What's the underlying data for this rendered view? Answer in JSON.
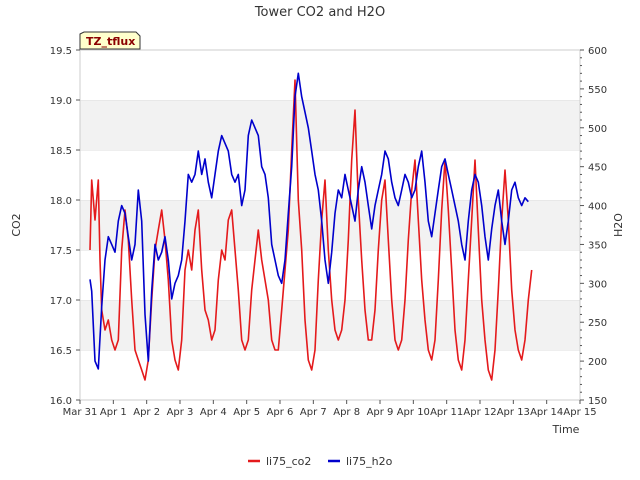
{
  "chart_data": {
    "type": "line",
    "title": "Tower CO2 and H2O",
    "site_tag": "TZ_tflux",
    "xlabel": "Time",
    "ylabel_left": "CO2",
    "ylabel_right": "H2O",
    "x_ticks": [
      "Mar 31",
      "Apr 1",
      "Apr 2",
      "Apr 3",
      "Apr 4",
      "Apr 5",
      "Apr 6",
      "Apr 7",
      "Apr 8",
      "Apr 9",
      "Apr 10",
      "Apr 11",
      "Apr 12",
      "Apr 13",
      "Apr 14",
      "Apr 15"
    ],
    "xlim": [
      0,
      15
    ],
    "ylim_left": [
      16.0,
      19.5
    ],
    "ylim_right": [
      150,
      600
    ],
    "yticks_left": [
      "16.0",
      "16.5",
      "17.0",
      "17.5",
      "18.0",
      "18.5",
      "19.0",
      "19.5"
    ],
    "yticks_right": [
      "150",
      "200",
      "250",
      "300",
      "350",
      "400",
      "450",
      "500",
      "550",
      "600"
    ],
    "grid": "horizontal alternating bands",
    "legend_position": "bottom-center",
    "series": [
      {
        "name": "li75_co2",
        "axis": "left",
        "color": "#e41a1c",
        "points": [
          [
            0.3,
            17.5
          ],
          [
            0.35,
            18.2
          ],
          [
            0.45,
            17.8
          ],
          [
            0.55,
            18.2
          ],
          [
            0.6,
            17.4
          ],
          [
            0.65,
            16.9
          ],
          [
            0.75,
            16.7
          ],
          [
            0.85,
            16.8
          ],
          [
            0.95,
            16.6
          ],
          [
            1.05,
            16.5
          ],
          [
            1.15,
            16.6
          ],
          [
            1.25,
            17.5
          ],
          [
            1.35,
            17.9
          ],
          [
            1.45,
            17.6
          ],
          [
            1.55,
            17.0
          ],
          [
            1.65,
            16.5
          ],
          [
            1.75,
            16.4
          ],
          [
            1.85,
            16.3
          ],
          [
            1.95,
            16.2
          ],
          [
            2.05,
            16.4
          ],
          [
            2.15,
            17.0
          ],
          [
            2.25,
            17.5
          ],
          [
            2.35,
            17.7
          ],
          [
            2.45,
            17.9
          ],
          [
            2.55,
            17.6
          ],
          [
            2.65,
            17.2
          ],
          [
            2.75,
            16.6
          ],
          [
            2.85,
            16.4
          ],
          [
            2.95,
            16.3
          ],
          [
            3.05,
            16.6
          ],
          [
            3.15,
            17.3
          ],
          [
            3.25,
            17.5
          ],
          [
            3.35,
            17.3
          ],
          [
            3.45,
            17.7
          ],
          [
            3.55,
            17.9
          ],
          [
            3.65,
            17.3
          ],
          [
            3.75,
            16.9
          ],
          [
            3.85,
            16.8
          ],
          [
            3.95,
            16.6
          ],
          [
            4.05,
            16.7
          ],
          [
            4.15,
            17.2
          ],
          [
            4.25,
            17.5
          ],
          [
            4.35,
            17.4
          ],
          [
            4.45,
            17.8
          ],
          [
            4.55,
            17.9
          ],
          [
            4.65,
            17.5
          ],
          [
            4.75,
            17.1
          ],
          [
            4.85,
            16.6
          ],
          [
            4.95,
            16.5
          ],
          [
            5.05,
            16.6
          ],
          [
            5.15,
            17.1
          ],
          [
            5.25,
            17.4
          ],
          [
            5.35,
            17.7
          ],
          [
            5.45,
            17.4
          ],
          [
            5.55,
            17.2
          ],
          [
            5.65,
            17.0
          ],
          [
            5.75,
            16.6
          ],
          [
            5.85,
            16.5
          ],
          [
            5.95,
            16.5
          ],
          [
            6.05,
            16.9
          ],
          [
            6.15,
            17.3
          ],
          [
            6.25,
            17.7
          ],
          [
            6.35,
            18.5
          ],
          [
            6.45,
            19.2
          ],
          [
            6.55,
            18.0
          ],
          [
            6.65,
            17.5
          ],
          [
            6.75,
            16.8
          ],
          [
            6.85,
            16.4
          ],
          [
            6.95,
            16.3
          ],
          [
            7.05,
            16.5
          ],
          [
            7.15,
            17.2
          ],
          [
            7.25,
            17.8
          ],
          [
            7.35,
            18.2
          ],
          [
            7.45,
            17.5
          ],
          [
            7.55,
            17.0
          ],
          [
            7.65,
            16.7
          ],
          [
            7.75,
            16.6
          ],
          [
            7.85,
            16.7
          ],
          [
            7.95,
            17.0
          ],
          [
            8.05,
            17.6
          ],
          [
            8.15,
            18.4
          ],
          [
            8.25,
            18.9
          ],
          [
            8.35,
            18.0
          ],
          [
            8.45,
            17.4
          ],
          [
            8.55,
            16.9
          ],
          [
            8.65,
            16.6
          ],
          [
            8.75,
            16.6
          ],
          [
            8.85,
            16.9
          ],
          [
            8.95,
            17.5
          ],
          [
            9.05,
            18.0
          ],
          [
            9.15,
            18.2
          ],
          [
            9.25,
            17.6
          ],
          [
            9.35,
            17.0
          ],
          [
            9.45,
            16.6
          ],
          [
            9.55,
            16.5
          ],
          [
            9.65,
            16.6
          ],
          [
            9.75,
            17.0
          ],
          [
            9.85,
            17.6
          ],
          [
            9.95,
            18.1
          ],
          [
            10.05,
            18.4
          ],
          [
            10.15,
            17.8
          ],
          [
            10.25,
            17.2
          ],
          [
            10.35,
            16.8
          ],
          [
            10.45,
            16.5
          ],
          [
            10.55,
            16.4
          ],
          [
            10.65,
            16.6
          ],
          [
            10.75,
            17.2
          ],
          [
            10.85,
            17.9
          ],
          [
            10.95,
            18.4
          ],
          [
            11.05,
            17.9
          ],
          [
            11.15,
            17.3
          ],
          [
            11.25,
            16.7
          ],
          [
            11.35,
            16.4
          ],
          [
            11.45,
            16.3
          ],
          [
            11.55,
            16.6
          ],
          [
            11.65,
            17.2
          ],
          [
            11.75,
            17.8
          ],
          [
            11.85,
            18.4
          ],
          [
            11.95,
            17.7
          ],
          [
            12.05,
            17.0
          ],
          [
            12.15,
            16.6
          ],
          [
            12.25,
            16.3
          ],
          [
            12.35,
            16.2
          ],
          [
            12.45,
            16.5
          ],
          [
            12.55,
            17.1
          ],
          [
            12.65,
            17.8
          ],
          [
            12.75,
            18.3
          ],
          [
            12.85,
            17.8
          ],
          [
            12.95,
            17.1
          ],
          [
            13.05,
            16.7
          ],
          [
            13.15,
            16.5
          ],
          [
            13.25,
            16.4
          ],
          [
            13.35,
            16.6
          ],
          [
            13.45,
            17.0
          ],
          [
            13.55,
            17.3
          ]
        ]
      },
      {
        "name": "li75_h2o",
        "axis": "right",
        "color": "#0000cc",
        "points": [
          [
            0.3,
            305
          ],
          [
            0.35,
            290
          ],
          [
            0.45,
            200
          ],
          [
            0.55,
            190
          ],
          [
            0.65,
            270
          ],
          [
            0.75,
            330
          ],
          [
            0.85,
            360
          ],
          [
            0.95,
            350
          ],
          [
            1.05,
            340
          ],
          [
            1.15,
            380
          ],
          [
            1.25,
            400
          ],
          [
            1.35,
            390
          ],
          [
            1.45,
            360
          ],
          [
            1.55,
            330
          ],
          [
            1.65,
            350
          ],
          [
            1.75,
            420
          ],
          [
            1.85,
            380
          ],
          [
            1.95,
            260
          ],
          [
            2.05,
            200
          ],
          [
            2.15,
            290
          ],
          [
            2.25,
            350
          ],
          [
            2.35,
            330
          ],
          [
            2.45,
            340
          ],
          [
            2.55,
            360
          ],
          [
            2.65,
            330
          ],
          [
            2.75,
            280
          ],
          [
            2.85,
            300
          ],
          [
            2.95,
            310
          ],
          [
            3.05,
            330
          ],
          [
            3.15,
            380
          ],
          [
            3.25,
            440
          ],
          [
            3.35,
            430
          ],
          [
            3.45,
            440
          ],
          [
            3.55,
            470
          ],
          [
            3.65,
            440
          ],
          [
            3.75,
            460
          ],
          [
            3.85,
            430
          ],
          [
            3.95,
            410
          ],
          [
            4.05,
            440
          ],
          [
            4.15,
            470
          ],
          [
            4.25,
            490
          ],
          [
            4.35,
            480
          ],
          [
            4.45,
            470
          ],
          [
            4.55,
            440
          ],
          [
            4.65,
            430
          ],
          [
            4.75,
            440
          ],
          [
            4.85,
            400
          ],
          [
            4.95,
            420
          ],
          [
            5.05,
            490
          ],
          [
            5.15,
            510
          ],
          [
            5.25,
            500
          ],
          [
            5.35,
            490
          ],
          [
            5.45,
            450
          ],
          [
            5.55,
            440
          ],
          [
            5.65,
            410
          ],
          [
            5.75,
            350
          ],
          [
            5.85,
            330
          ],
          [
            5.95,
            310
          ],
          [
            6.05,
            300
          ],
          [
            6.15,
            330
          ],
          [
            6.25,
            390
          ],
          [
            6.35,
            450
          ],
          [
            6.45,
            540
          ],
          [
            6.55,
            570
          ],
          [
            6.65,
            540
          ],
          [
            6.75,
            520
          ],
          [
            6.85,
            500
          ],
          [
            6.95,
            470
          ],
          [
            7.05,
            440
          ],
          [
            7.15,
            420
          ],
          [
            7.25,
            380
          ],
          [
            7.35,
            330
          ],
          [
            7.45,
            300
          ],
          [
            7.55,
            340
          ],
          [
            7.65,
            390
          ],
          [
            7.75,
            420
          ],
          [
            7.85,
            410
          ],
          [
            7.95,
            440
          ],
          [
            8.05,
            420
          ],
          [
            8.15,
            400
          ],
          [
            8.25,
            380
          ],
          [
            8.35,
            420
          ],
          [
            8.45,
            450
          ],
          [
            8.55,
            430
          ],
          [
            8.65,
            400
          ],
          [
            8.75,
            370
          ],
          [
            8.85,
            400
          ],
          [
            8.95,
            420
          ],
          [
            9.05,
            440
          ],
          [
            9.15,
            470
          ],
          [
            9.25,
            460
          ],
          [
            9.35,
            430
          ],
          [
            9.45,
            410
          ],
          [
            9.55,
            400
          ],
          [
            9.65,
            420
          ],
          [
            9.75,
            440
          ],
          [
            9.85,
            430
          ],
          [
            9.95,
            410
          ],
          [
            10.05,
            420
          ],
          [
            10.15,
            450
          ],
          [
            10.25,
            470
          ],
          [
            10.35,
            430
          ],
          [
            10.45,
            380
          ],
          [
            10.55,
            360
          ],
          [
            10.65,
            390
          ],
          [
            10.75,
            420
          ],
          [
            10.85,
            450
          ],
          [
            10.95,
            460
          ],
          [
            11.05,
            440
          ],
          [
            11.15,
            420
          ],
          [
            11.25,
            400
          ],
          [
            11.35,
            380
          ],
          [
            11.45,
            350
          ],
          [
            11.55,
            330
          ],
          [
            11.65,
            380
          ],
          [
            11.75,
            420
          ],
          [
            11.85,
            440
          ],
          [
            11.95,
            430
          ],
          [
            12.05,
            400
          ],
          [
            12.15,
            360
          ],
          [
            12.25,
            330
          ],
          [
            12.35,
            370
          ],
          [
            12.45,
            400
          ],
          [
            12.55,
            420
          ],
          [
            12.65,
            380
          ],
          [
            12.75,
            350
          ],
          [
            12.85,
            380
          ],
          [
            12.95,
            420
          ],
          [
            13.05,
            430
          ],
          [
            13.15,
            410
          ],
          [
            13.25,
            400
          ],
          [
            13.35,
            410
          ],
          [
            13.45,
            405
          ]
        ]
      }
    ]
  }
}
